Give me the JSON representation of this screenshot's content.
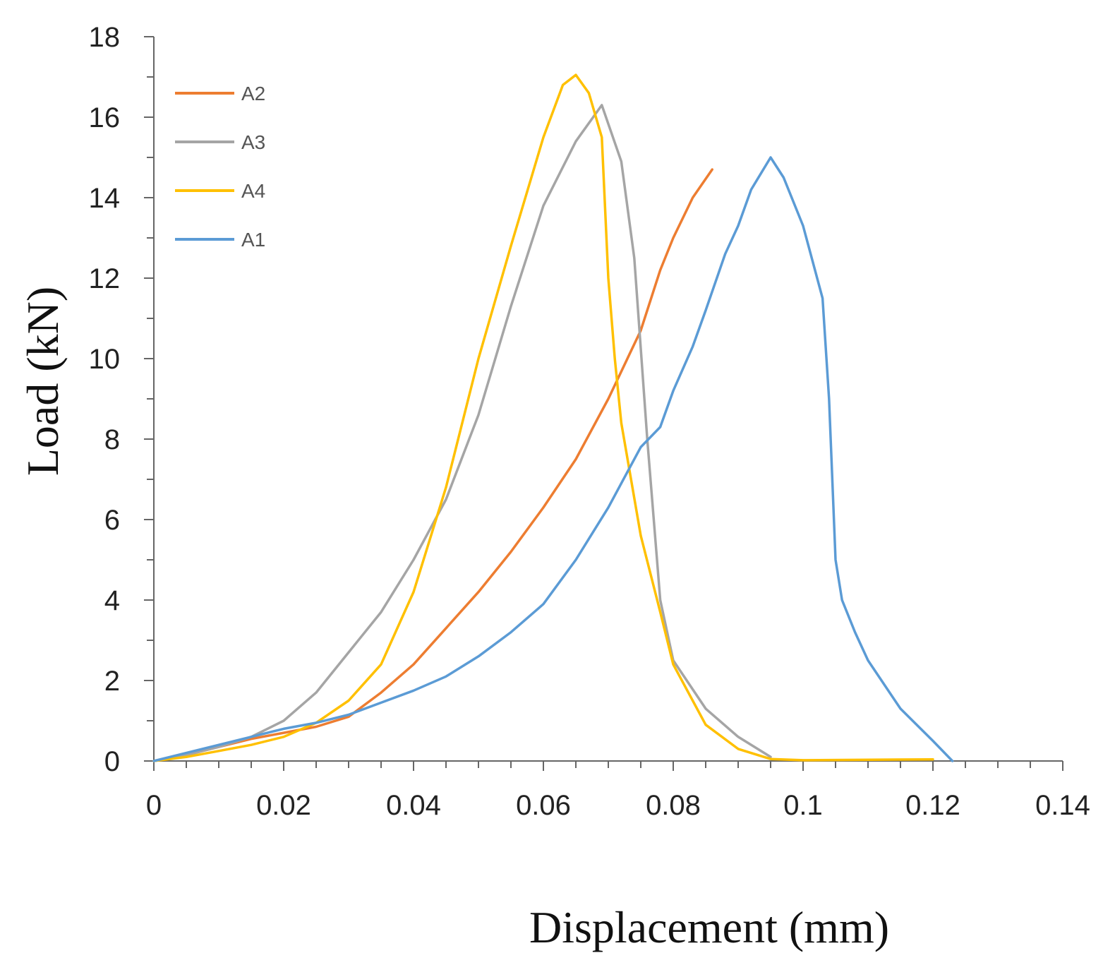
{
  "chart_data": {
    "type": "line",
    "title": "",
    "xlabel": "Displacement (mm)",
    "ylabel": "Load (kN)",
    "xlim": [
      0,
      0.14
    ],
    "ylim": [
      0,
      18
    ],
    "x_ticks": [
      "0",
      "0.02",
      "0.04",
      "0.06",
      "0.08",
      "0.1",
      "0.12",
      "0.14"
    ],
    "y_ticks": [
      "0",
      "2",
      "4",
      "6",
      "8",
      "10",
      "12",
      "14",
      "16",
      "18"
    ],
    "legend_position": "top-left",
    "series": [
      {
        "name": "A2",
        "color": "#ed7d31",
        "points": [
          [
            0,
            0
          ],
          [
            0.005,
            0.15
          ],
          [
            0.01,
            0.35
          ],
          [
            0.015,
            0.55
          ],
          [
            0.02,
            0.7
          ],
          [
            0.025,
            0.85
          ],
          [
            0.03,
            1.1
          ],
          [
            0.035,
            1.7
          ],
          [
            0.04,
            2.4
          ],
          [
            0.045,
            3.3
          ],
          [
            0.05,
            4.2
          ],
          [
            0.055,
            5.2
          ],
          [
            0.06,
            6.3
          ],
          [
            0.065,
            7.5
          ],
          [
            0.07,
            9.0
          ],
          [
            0.075,
            10.7
          ],
          [
            0.078,
            12.2
          ],
          [
            0.08,
            13.0
          ],
          [
            0.083,
            14.0
          ],
          [
            0.086,
            14.7
          ]
        ]
      },
      {
        "name": "A3",
        "color": "#a5a5a5",
        "points": [
          [
            0,
            0
          ],
          [
            0.005,
            0.15
          ],
          [
            0.01,
            0.35
          ],
          [
            0.015,
            0.6
          ],
          [
            0.02,
            1.0
          ],
          [
            0.025,
            1.7
          ],
          [
            0.03,
            2.7
          ],
          [
            0.035,
            3.7
          ],
          [
            0.04,
            5.0
          ],
          [
            0.045,
            6.5
          ],
          [
            0.05,
            8.6
          ],
          [
            0.055,
            11.3
          ],
          [
            0.06,
            13.8
          ],
          [
            0.065,
            15.4
          ],
          [
            0.069,
            16.3
          ],
          [
            0.072,
            14.9
          ],
          [
            0.074,
            12.5
          ],
          [
            0.076,
            8.0
          ],
          [
            0.078,
            4.0
          ],
          [
            0.08,
            2.5
          ],
          [
            0.085,
            1.3
          ],
          [
            0.09,
            0.6
          ],
          [
            0.095,
            0.1
          ]
        ]
      },
      {
        "name": "A4",
        "color": "#ffc000",
        "points": [
          [
            0,
            0
          ],
          [
            0.005,
            0.1
          ],
          [
            0.01,
            0.25
          ],
          [
            0.015,
            0.4
          ],
          [
            0.02,
            0.6
          ],
          [
            0.025,
            0.95
          ],
          [
            0.03,
            1.5
          ],
          [
            0.035,
            2.4
          ],
          [
            0.04,
            4.2
          ],
          [
            0.045,
            6.8
          ],
          [
            0.05,
            10.0
          ],
          [
            0.055,
            12.8
          ],
          [
            0.06,
            15.5
          ],
          [
            0.063,
            16.8
          ],
          [
            0.065,
            17.05
          ],
          [
            0.067,
            16.6
          ],
          [
            0.069,
            15.5
          ],
          [
            0.07,
            12.0
          ],
          [
            0.071,
            10.0
          ],
          [
            0.072,
            8.4
          ],
          [
            0.075,
            5.6
          ],
          [
            0.078,
            3.7
          ],
          [
            0.08,
            2.4
          ],
          [
            0.085,
            0.9
          ],
          [
            0.09,
            0.3
          ],
          [
            0.095,
            0.05
          ],
          [
            0.1,
            0.02
          ],
          [
            0.12,
            0.04
          ]
        ]
      },
      {
        "name": "A1",
        "color": "#5b9bd5",
        "points": [
          [
            0,
            0
          ],
          [
            0.005,
            0.2
          ],
          [
            0.01,
            0.4
          ],
          [
            0.015,
            0.6
          ],
          [
            0.02,
            0.8
          ],
          [
            0.025,
            0.95
          ],
          [
            0.03,
            1.15
          ],
          [
            0.035,
            1.45
          ],
          [
            0.04,
            1.75
          ],
          [
            0.045,
            2.1
          ],
          [
            0.05,
            2.6
          ],
          [
            0.055,
            3.2
          ],
          [
            0.06,
            3.9
          ],
          [
            0.065,
            5.0
          ],
          [
            0.07,
            6.3
          ],
          [
            0.075,
            7.8
          ],
          [
            0.078,
            8.3
          ],
          [
            0.08,
            9.2
          ],
          [
            0.083,
            10.3
          ],
          [
            0.085,
            11.2
          ],
          [
            0.088,
            12.6
          ],
          [
            0.09,
            13.3
          ],
          [
            0.092,
            14.2
          ],
          [
            0.095,
            15.0
          ],
          [
            0.097,
            14.5
          ],
          [
            0.1,
            13.3
          ],
          [
            0.103,
            11.5
          ],
          [
            0.104,
            9.0
          ],
          [
            0.105,
            5.0
          ],
          [
            0.106,
            4.0
          ],
          [
            0.108,
            3.2
          ],
          [
            0.11,
            2.5
          ],
          [
            0.115,
            1.3
          ],
          [
            0.12,
            0.5
          ],
          [
            0.123,
            0.0
          ]
        ]
      }
    ]
  }
}
